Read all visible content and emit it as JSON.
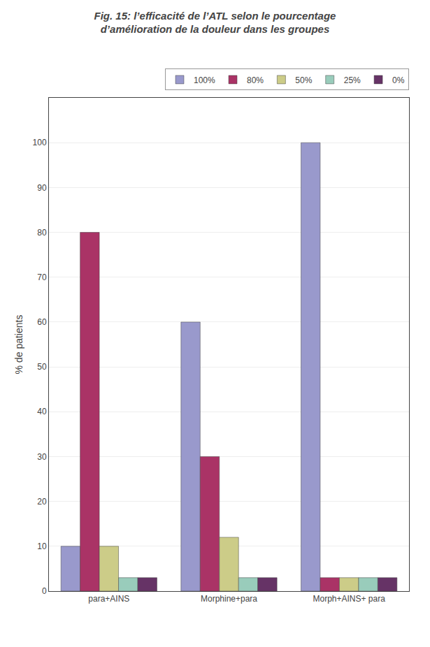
{
  "chart_data": {
    "type": "bar",
    "title": "Fig. 15: l’efficacité de l’ATL selon le pourcentage",
    "subtitle": "d’amélioration de la douleur dans les groupes",
    "y_label": "% de patients",
    "categories": [
      "para+AINS",
      "Morphine+para",
      "Morph+AINS+ para"
    ],
    "series": [
      {
        "name": "100%",
        "color": "#9999cc",
        "values": [
          10,
          60,
          100
        ]
      },
      {
        "name": "80%",
        "color": "#aa3366",
        "values": [
          80,
          30,
          3
        ]
      },
      {
        "name": "50%",
        "color": "#cccc88",
        "values": [
          10,
          12,
          3
        ]
      },
      {
        "name": "25%",
        "color": "#99ccbb",
        "values": [
          3,
          3,
          3
        ]
      },
      {
        "name": "0%",
        "color": "#663366",
        "values": [
          3,
          3,
          3
        ]
      }
    ],
    "ylim": [
      0,
      110
    ],
    "yticks": [
      0,
      10,
      20,
      30,
      40,
      50,
      60,
      70,
      80,
      90,
      100
    ],
    "grid": true,
    "legend": "upper right"
  }
}
